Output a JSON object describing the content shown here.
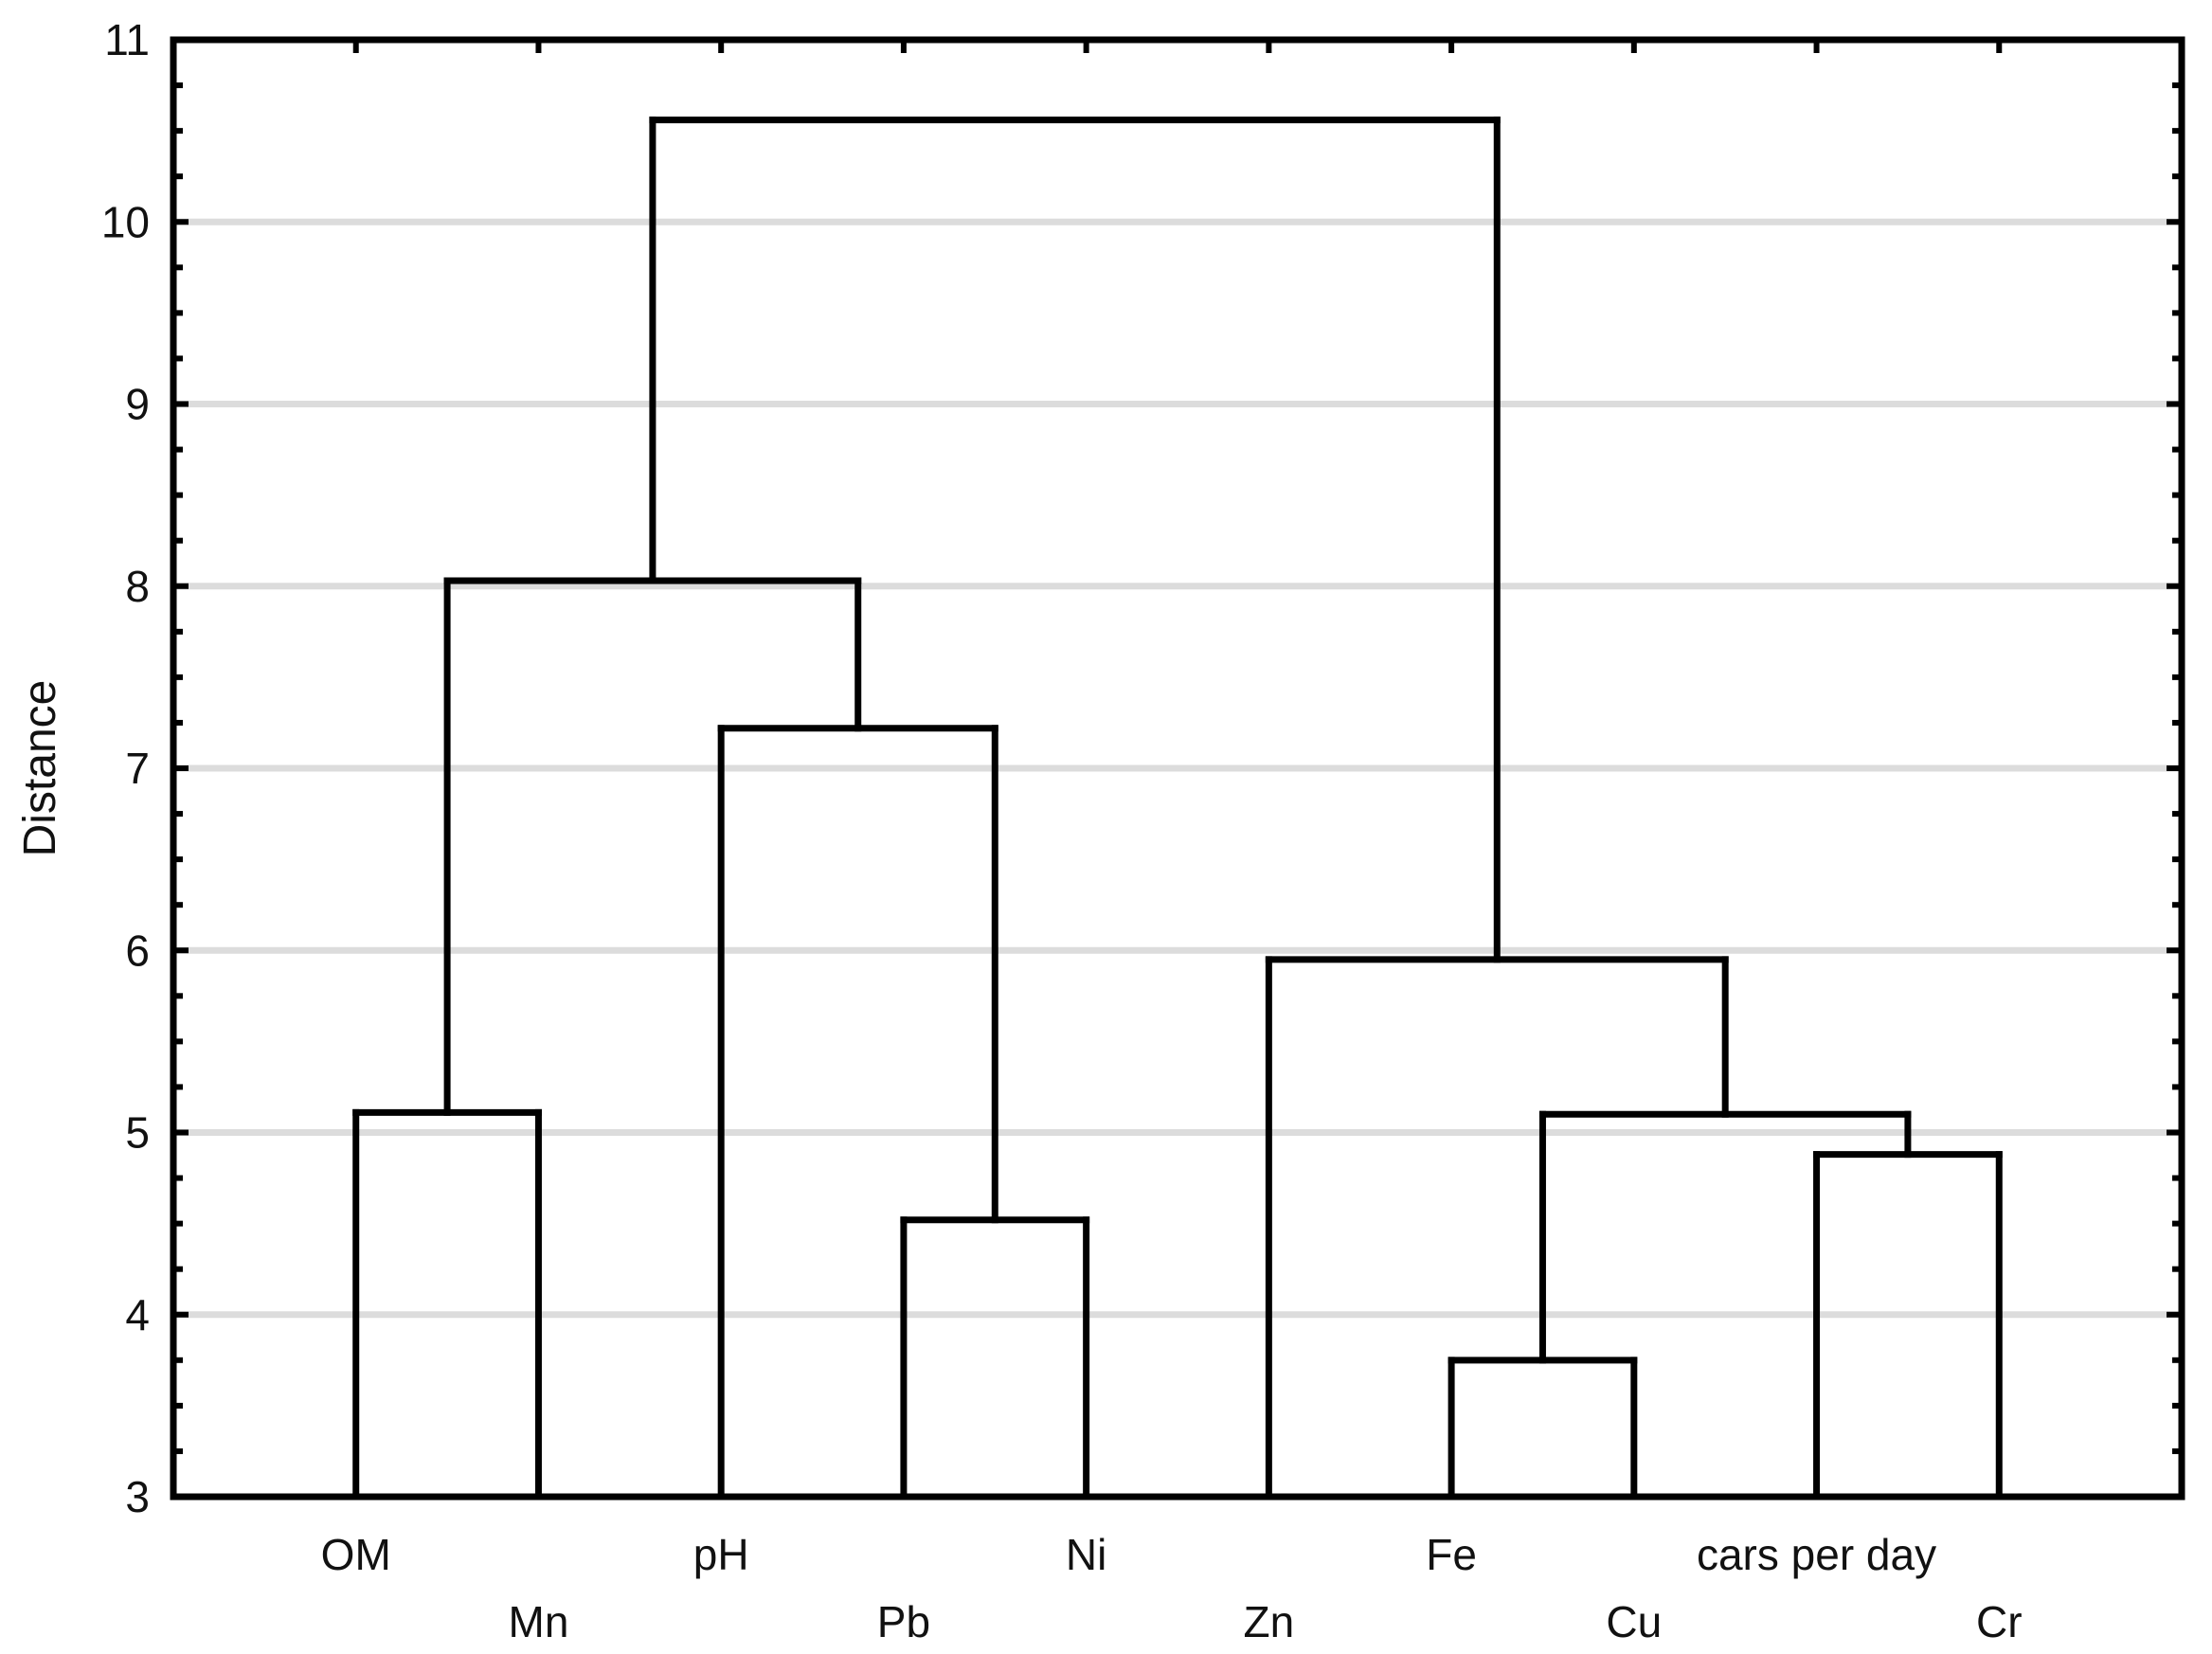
{
  "figure": {
    "background": "#ffffff",
    "line_color": "#000000",
    "grid_color": "#dcdcdc",
    "text_color": "#111111"
  },
  "chart_data": {
    "type": "dendrogram",
    "title": "",
    "xlabel": "",
    "ylabel": "Distance",
    "ylim": [
      3,
      11
    ],
    "yticks": [
      3,
      4,
      5,
      6,
      7,
      8,
      9,
      10,
      11
    ],
    "minor_tick_step": 0.25,
    "grid": true,
    "gridlines_at": [
      4,
      5,
      6,
      7,
      8,
      9,
      10
    ],
    "legend": false,
    "leaf_base": 3,
    "leaves": [
      "OM",
      "Mn",
      "pH",
      "Pb",
      "Ni",
      "Zn",
      "Fe",
      "Cu",
      "cars per day",
      "Cr"
    ],
    "leaf_label_rows": [
      0,
      1,
      0,
      1,
      0,
      1,
      0,
      1,
      0,
      1
    ],
    "merges": [
      {
        "cluster": "Fe-Cu",
        "a": "Fe",
        "b": "Cu",
        "distance": 3.75
      },
      {
        "cluster": "Pb-Ni",
        "a": "Pb",
        "b": "Ni",
        "distance": 4.52
      },
      {
        "cluster": "cars-Cr",
        "a": "cars per day",
        "b": "Cr",
        "distance": 4.88
      },
      {
        "cluster": "Fe-Cu-cars-Cr",
        "a": "Fe-Cu",
        "b": "cars-Cr",
        "distance": 5.1
      },
      {
        "cluster": "OM-Mn",
        "a": "OM",
        "b": "Mn",
        "distance": 5.11
      },
      {
        "cluster": "Zn-group",
        "a": "Zn",
        "b": "Fe-Cu-cars-Cr",
        "distance": 5.95
      },
      {
        "cluster": "pH-Pb-Ni",
        "a": "pH",
        "b": "Pb-Ni",
        "distance": 7.22
      },
      {
        "cluster": "left-group",
        "a": "OM-Mn",
        "b": "pH-Pb-Ni",
        "distance": 8.03
      },
      {
        "cluster": "root",
        "a": "left-group",
        "b": "Zn-group",
        "distance": 10.56
      }
    ]
  }
}
